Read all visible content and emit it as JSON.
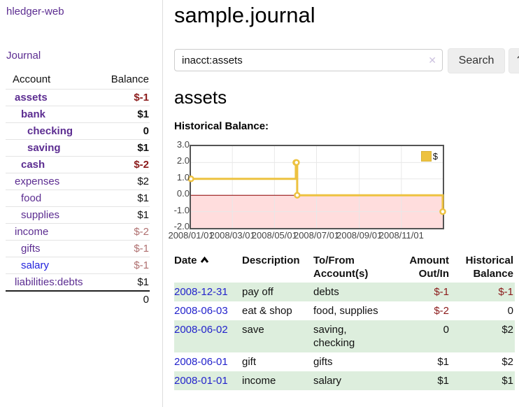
{
  "colors": {
    "accent_purple": "#5c2d91",
    "link_blue": "#2222cc",
    "negative_strong": "#8b1a1a",
    "negative_soft": "#b07070",
    "row_stripe_green": "#ddeedd",
    "series_gold": "#edc240",
    "negative_region_pink": "#ffdddd",
    "zero_line_red": "#8b0000",
    "grid_line": "#e8e8e8",
    "plot_border": "#545454"
  },
  "sidebar": {
    "brand": "hledger-web",
    "journal_link": "Journal",
    "accounts_table": {
      "headers": {
        "account": "Account",
        "balance": "Balance"
      },
      "rows": [
        {
          "name": "assets",
          "balance": "$-1",
          "depth": 1,
          "bold": true
        },
        {
          "name": "bank",
          "balance": "$1",
          "depth": 2,
          "bold": true
        },
        {
          "name": "checking",
          "balance": "0",
          "depth": 3,
          "bold": true
        },
        {
          "name": "saving",
          "balance": "$1",
          "depth": 3,
          "bold": true
        },
        {
          "name": "cash",
          "balance": "$-2",
          "depth": 2,
          "bold": true
        },
        {
          "name": "expenses",
          "balance": "$2",
          "depth": 1,
          "bold": false
        },
        {
          "name": "food",
          "balance": "$1",
          "depth": 2,
          "bold": false
        },
        {
          "name": "supplies",
          "balance": "$1",
          "depth": 2,
          "bold": false
        },
        {
          "name": "income",
          "balance": "$-2",
          "depth": 1,
          "bold": false
        },
        {
          "name": "gifts",
          "balance": "$-1",
          "depth": 2,
          "bold": false
        },
        {
          "name": "salary",
          "balance": "$-1",
          "depth": 2,
          "bold": false,
          "link_color": "blue"
        },
        {
          "name": "liabilities:debts",
          "balance": "$1",
          "depth": 1,
          "bold": false
        }
      ],
      "total": "0"
    }
  },
  "header": {
    "title": "sample.journal"
  },
  "search": {
    "value": "inacct:assets",
    "clear_icon": "✕",
    "button_label": "Search",
    "help_label": "?"
  },
  "account_page": {
    "heading": "assets",
    "chart_label": "Historical Balance:"
  },
  "chart_data": {
    "type": "line",
    "steps": true,
    "title": "Historical Balance",
    "x_start": "2008-01-01",
    "x_end": "2008-12-31",
    "ylim": [
      -2,
      3
    ],
    "y_ticks": [
      3.0,
      2.0,
      1.0,
      0.0,
      -1.0,
      -2.0
    ],
    "x_ticks": [
      "2008/01/01",
      "2008/03/01",
      "2008/05/01",
      "2008/07/01",
      "2008/09/01",
      "2008/11/01"
    ],
    "grid": true,
    "legend_position": "top-right",
    "series": [
      {
        "name": "$",
        "color": "#edc240",
        "points": [
          {
            "date": "2008-01-01",
            "value": 1
          },
          {
            "date": "2008-06-01",
            "value": 2
          },
          {
            "date": "2008-06-02",
            "value": 2
          },
          {
            "date": "2008-06-03",
            "value": 0
          },
          {
            "date": "2008-12-31",
            "value": -1
          }
        ]
      }
    ],
    "negative_region": {
      "below": 0,
      "color": "#ffdddd",
      "line_color": "#8b0000"
    }
  },
  "register_table": {
    "headers": {
      "date": "Date",
      "description": "Description",
      "accounts": "To/From\nAccount(s)",
      "amount": "Amount\nOut/In",
      "balance": "Historical\nBalance"
    },
    "sort": {
      "column": "date",
      "direction": "ascending"
    },
    "rows": [
      {
        "date": "2008-12-31",
        "description": "pay off",
        "accounts": "debts",
        "amount": "$-1",
        "balance": "$-1"
      },
      {
        "date": "2008-06-03",
        "description": "eat & shop",
        "accounts": "food, supplies",
        "amount": "$-2",
        "balance": "0"
      },
      {
        "date": "2008-06-02",
        "description": "save",
        "accounts": "saving,\nchecking",
        "amount": "0",
        "balance": "$2"
      },
      {
        "date": "2008-06-01",
        "description": "gift",
        "accounts": "gifts",
        "amount": "$1",
        "balance": "$2"
      },
      {
        "date": "2008-01-01",
        "description": "income",
        "accounts": "salary",
        "amount": "$1",
        "balance": "$1"
      }
    ]
  }
}
